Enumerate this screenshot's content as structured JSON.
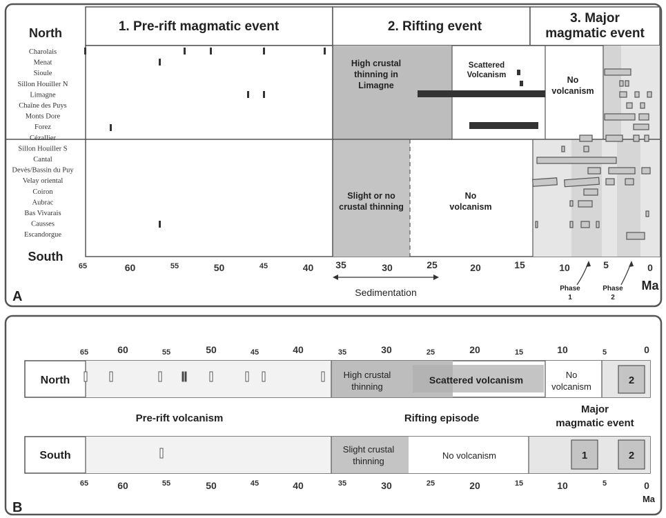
{
  "panel_a": {
    "letter": "A",
    "headers": [
      "1. Pre-rift magmatic event",
      "2. Rifting event",
      "3. Major",
      "magmatic event"
    ],
    "north": "North",
    "south": "South",
    "regions": [
      "Charolais",
      "Menat",
      "Sioule",
      "Sillon Houiller N",
      "Limagne",
      "Chaîne des Puys",
      "Monts Dore",
      "Forez",
      "Cézallier",
      "Sillon Houiller S",
      "Cantal",
      "Devès/Bassin du Puy",
      "Velay oriental",
      "Coiron",
      "Aubrac",
      "Bas Vivarais",
      "Causses",
      "Escandorgue"
    ],
    "ticks": [
      "65",
      "60",
      "55",
      "50",
      "45",
      "40",
      "35",
      "30",
      "25",
      "20",
      "15",
      "10",
      "5",
      "0"
    ],
    "unit": "Ma",
    "labels": {
      "high_thinning": [
        "High crustal",
        "thinning in",
        "Limagne"
      ],
      "scattered": [
        "Scattered",
        "Volcanism"
      ],
      "no_volc_n": [
        "No",
        "volcanism"
      ],
      "slight": [
        "Slight or no",
        "crustal thinning"
      ],
      "no_volc_s": [
        "No",
        "volcanism"
      ],
      "sedimentation": "Sedimentation",
      "phase1": [
        "Phase",
        "1"
      ],
      "phase2": [
        "Phase",
        "2"
      ]
    }
  },
  "panel_b": {
    "letter": "B",
    "ticks": [
      "65",
      "60",
      "55",
      "50",
      "45",
      "40",
      "35",
      "30",
      "25",
      "20",
      "15",
      "10",
      "5",
      "0"
    ],
    "north": "North",
    "south": "South",
    "unit": "Ma",
    "labels": {
      "high": [
        "High crustal",
        "thinning"
      ],
      "scattered": "Scattered volcanism",
      "no_volc_n": [
        "No",
        "volcanism"
      ],
      "box2": "2",
      "box1": "1",
      "prerift": "Pre-rift volcanism",
      "rifting": "Rifting episode",
      "major": [
        "Major",
        "magmatic event"
      ],
      "slight": [
        "Slight crustal",
        "thinning"
      ],
      "no_volc_s": "No volcanism"
    }
  },
  "colors": {
    "frame": "#555555",
    "rift_north": "#bdbdbd",
    "rift_south": "#c4c4c4",
    "major_light": "#e6e6e6",
    "major_dark": "#d0d0d0",
    "bar": "#333333",
    "cell": "#bcbcbc"
  },
  "chart_data": {
    "type": "timeline",
    "x_unit": "Ma",
    "xlim": [
      65,
      0
    ],
    "periods": [
      "Pre-rift magmatic event (~65-37 Ma)",
      "Rifting event (~37-13 Ma)",
      "Major magmatic event (~13-0 Ma)"
    ]
  }
}
